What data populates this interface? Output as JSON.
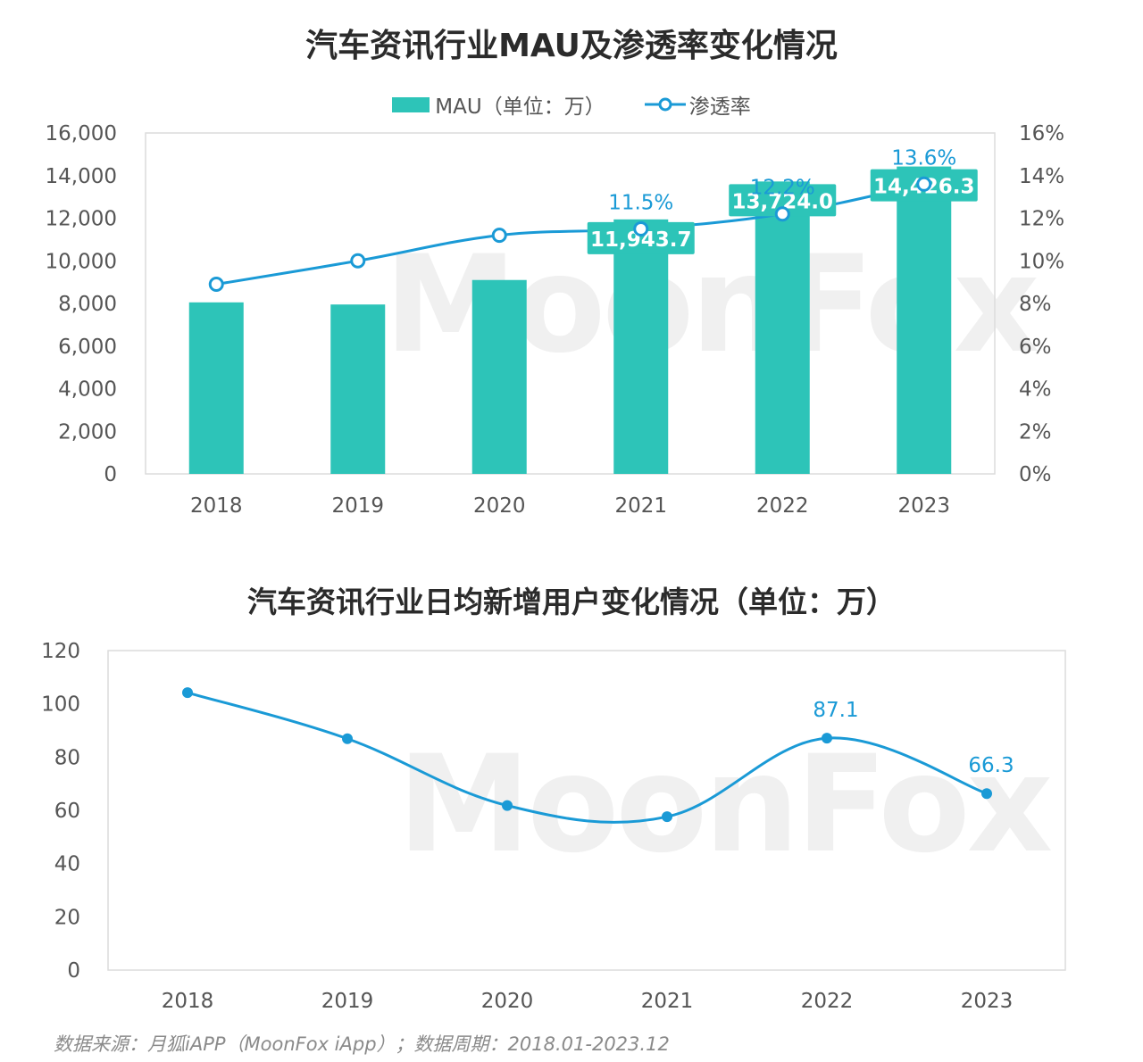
{
  "chart_data": [
    {
      "type": "bar+line",
      "title": "汽车资讯行业MAU及渗透率变化情况",
      "categories": [
        "2018",
        "2019",
        "2020",
        "2021",
        "2022",
        "2023"
      ],
      "series": [
        {
          "name": "MAU（单位：万）",
          "type": "bar",
          "axis": "left",
          "values": [
            8050,
            7950,
            9100,
            11943.7,
            13724.0,
            14426.3
          ],
          "labels": [
            "",
            "",
            "",
            "11,943.7",
            "13,724.0",
            "14,426.3"
          ]
        },
        {
          "name": "渗透率",
          "type": "line",
          "axis": "right",
          "values": [
            8.9,
            10.0,
            11.2,
            11.5,
            12.2,
            13.6
          ],
          "labels": [
            "",
            "",
            "",
            "11.5%",
            "12.2%",
            "13.6%"
          ]
        }
      ],
      "left_ylim": [
        0,
        16000
      ],
      "left_yticks": [
        "0",
        "2,000",
        "4,000",
        "6,000",
        "8,000",
        "10,000",
        "12,000",
        "14,000",
        "16,000"
      ],
      "right_ylim": [
        0,
        16
      ],
      "right_yticks": [
        "0%",
        "2%",
        "4%",
        "6%",
        "8%",
        "10%",
        "12%",
        "14%",
        "16%"
      ],
      "legend_position": "top-center",
      "colors": {
        "bar": "#2dc4b8",
        "line": "#1a9ad6",
        "label_text": "#1a9ad6"
      }
    },
    {
      "type": "line",
      "title": "汽车资讯行业日均新增用户变化情况（单位：万）",
      "categories": [
        "2018",
        "2019",
        "2020",
        "2021",
        "2022",
        "2023"
      ],
      "series": [
        {
          "type": "line",
          "values": [
            104.2,
            86.9,
            61.8,
            57.6,
            87.1,
            66.3
          ],
          "labels": [
            "",
            "",
            "",
            "",
            "87.1",
            "66.3"
          ]
        }
      ],
      "ylim": [
        0,
        120
      ],
      "yticks": [
        "0",
        "20",
        "40",
        "60",
        "80",
        "100",
        "120"
      ],
      "colors": {
        "line": "#1a9ad6"
      }
    }
  ],
  "watermark": "MoonFox",
  "footer": "数据来源：月狐iAPP（MoonFox iApp）；数据周期：2018.01-2023.12"
}
